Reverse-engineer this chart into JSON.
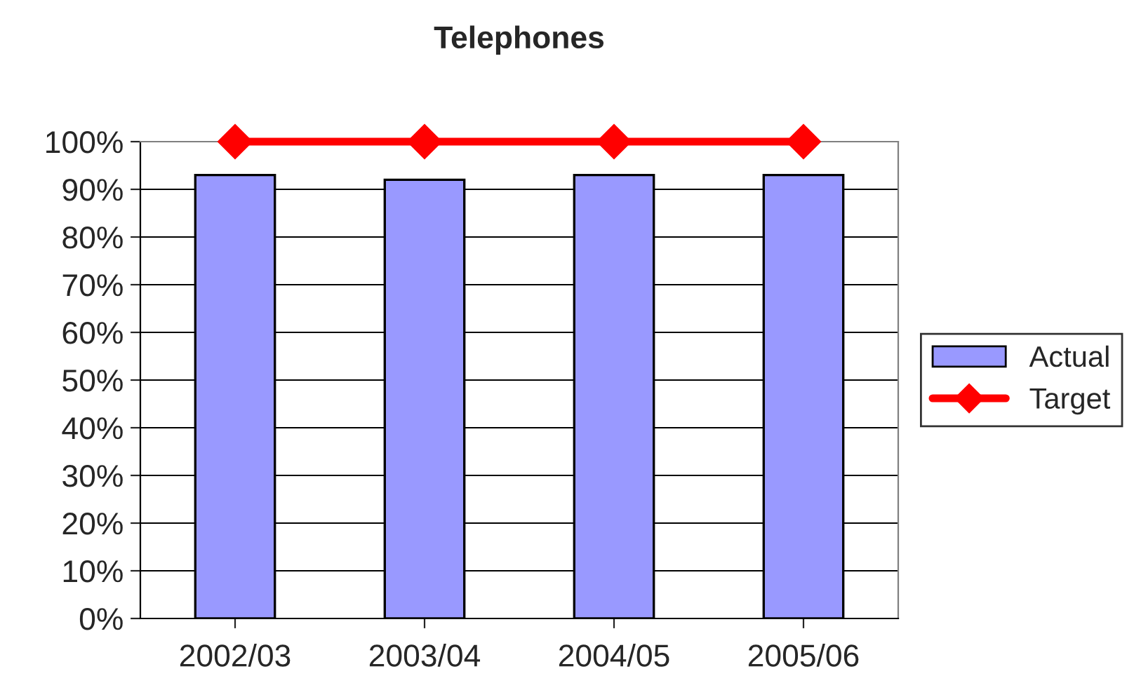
{
  "chart_data": {
    "type": "bar",
    "title": "Telephones",
    "categories": [
      "2002/03",
      "2003/04",
      "2004/05",
      "2005/06"
    ],
    "series": [
      {
        "name": "Actual",
        "color": "#9999ff",
        "values": [
          93,
          92,
          93,
          93
        ]
      },
      {
        "name": "Target",
        "type": "line",
        "color": "#ff0000",
        "values": [
          100,
          100,
          100,
          100
        ],
        "marker": "diamond"
      }
    ],
    "ylim": [
      0,
      100
    ],
    "yticks": [
      {
        "value": 0,
        "label": "0%"
      },
      {
        "value": 10,
        "label": "10%"
      },
      {
        "value": 20,
        "label": "20%"
      },
      {
        "value": 30,
        "label": "30%"
      },
      {
        "value": 40,
        "label": "40%"
      },
      {
        "value": 50,
        "label": "50%"
      },
      {
        "value": 60,
        "label": "60%"
      },
      {
        "value": 70,
        "label": "70%"
      },
      {
        "value": 80,
        "label": "80%"
      },
      {
        "value": 90,
        "label": "90%"
      },
      {
        "value": 100,
        "label": "100%"
      }
    ],
    "grid": "y",
    "legend": "right"
  }
}
